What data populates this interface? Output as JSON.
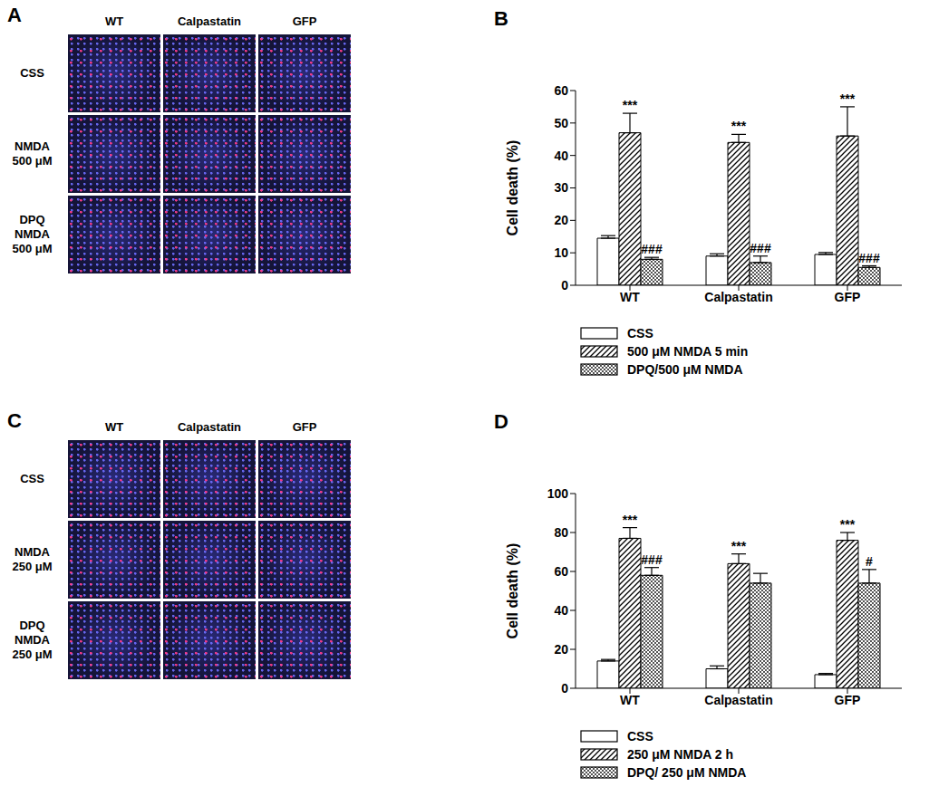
{
  "image_panels": [
    {
      "panel": "A",
      "columns": [
        "WT",
        "Calpastatin",
        "GFP"
      ],
      "rows": [
        [
          "CSS"
        ],
        [
          "NMDA",
          "500 μM"
        ],
        [
          "DPQ",
          "NMDA",
          "500 μM"
        ]
      ]
    },
    {
      "panel": "C",
      "columns": [
        "WT",
        "Calpastatin",
        "GFP"
      ],
      "rows": [
        [
          "CSS"
        ],
        [
          "NMDA",
          "250 μM"
        ],
        [
          "DPQ",
          "NMDA",
          "250 μM"
        ]
      ]
    }
  ],
  "chart_data": [
    {
      "panel": "B",
      "type": "bar",
      "y_label": "Cell death (%)",
      "categories": [
        "WT",
        "Calpastatin",
        "GFP"
      ],
      "ylim": [
        0,
        60
      ],
      "yticks": [
        0,
        10,
        20,
        30,
        40,
        50,
        60
      ],
      "legend": "bottom",
      "series": [
        {
          "name": "CSS",
          "color": "#ffffff",
          "values": [
            14.5,
            9,
            9.5
          ],
          "errors": [
            0.8,
            0.7,
            0.6
          ],
          "annotations": [
            null,
            null,
            null
          ]
        },
        {
          "name": "500 μM NMDA 5 min",
          "color": "#000000",
          "values": [
            47,
            44,
            46
          ],
          "errors": [
            6,
            2.5,
            9
          ],
          "annotations": [
            "***",
            "***",
            "***"
          ]
        },
        {
          "name": "DPQ/500 μM NMDA",
          "color": "#000000",
          "values": [
            8,
            7,
            5.5
          ],
          "errors": [
            0.6,
            2,
            0.5
          ],
          "annotations": [
            "###",
            "###",
            "###"
          ]
        }
      ]
    },
    {
      "panel": "D",
      "type": "bar",
      "y_label": "Cell death (%)",
      "categories": [
        "WT",
        "Calpastatin",
        "GFP"
      ],
      "ylim": [
        0,
        100
      ],
      "yticks": [
        0,
        20,
        40,
        60,
        80,
        100
      ],
      "legend": "bottom",
      "series": [
        {
          "name": "CSS",
          "color": "#ffffff",
          "values": [
            14,
            10,
            7
          ],
          "errors": [
            0.8,
            1.5,
            0.6
          ],
          "annotations": [
            null,
            null,
            null
          ]
        },
        {
          "name": "250 μM NMDA 2 h",
          "color": "#000000",
          "values": [
            77,
            64,
            76
          ],
          "errors": [
            5.5,
            5,
            4
          ],
          "annotations": [
            "***",
            "***",
            "***"
          ]
        },
        {
          "name": "DPQ/ 250 μM NMDA",
          "color": "#000000",
          "values": [
            58,
            54,
            54
          ],
          "errors": [
            4,
            5,
            7
          ],
          "annotations": [
            "###",
            null,
            "#"
          ]
        }
      ]
    }
  ]
}
